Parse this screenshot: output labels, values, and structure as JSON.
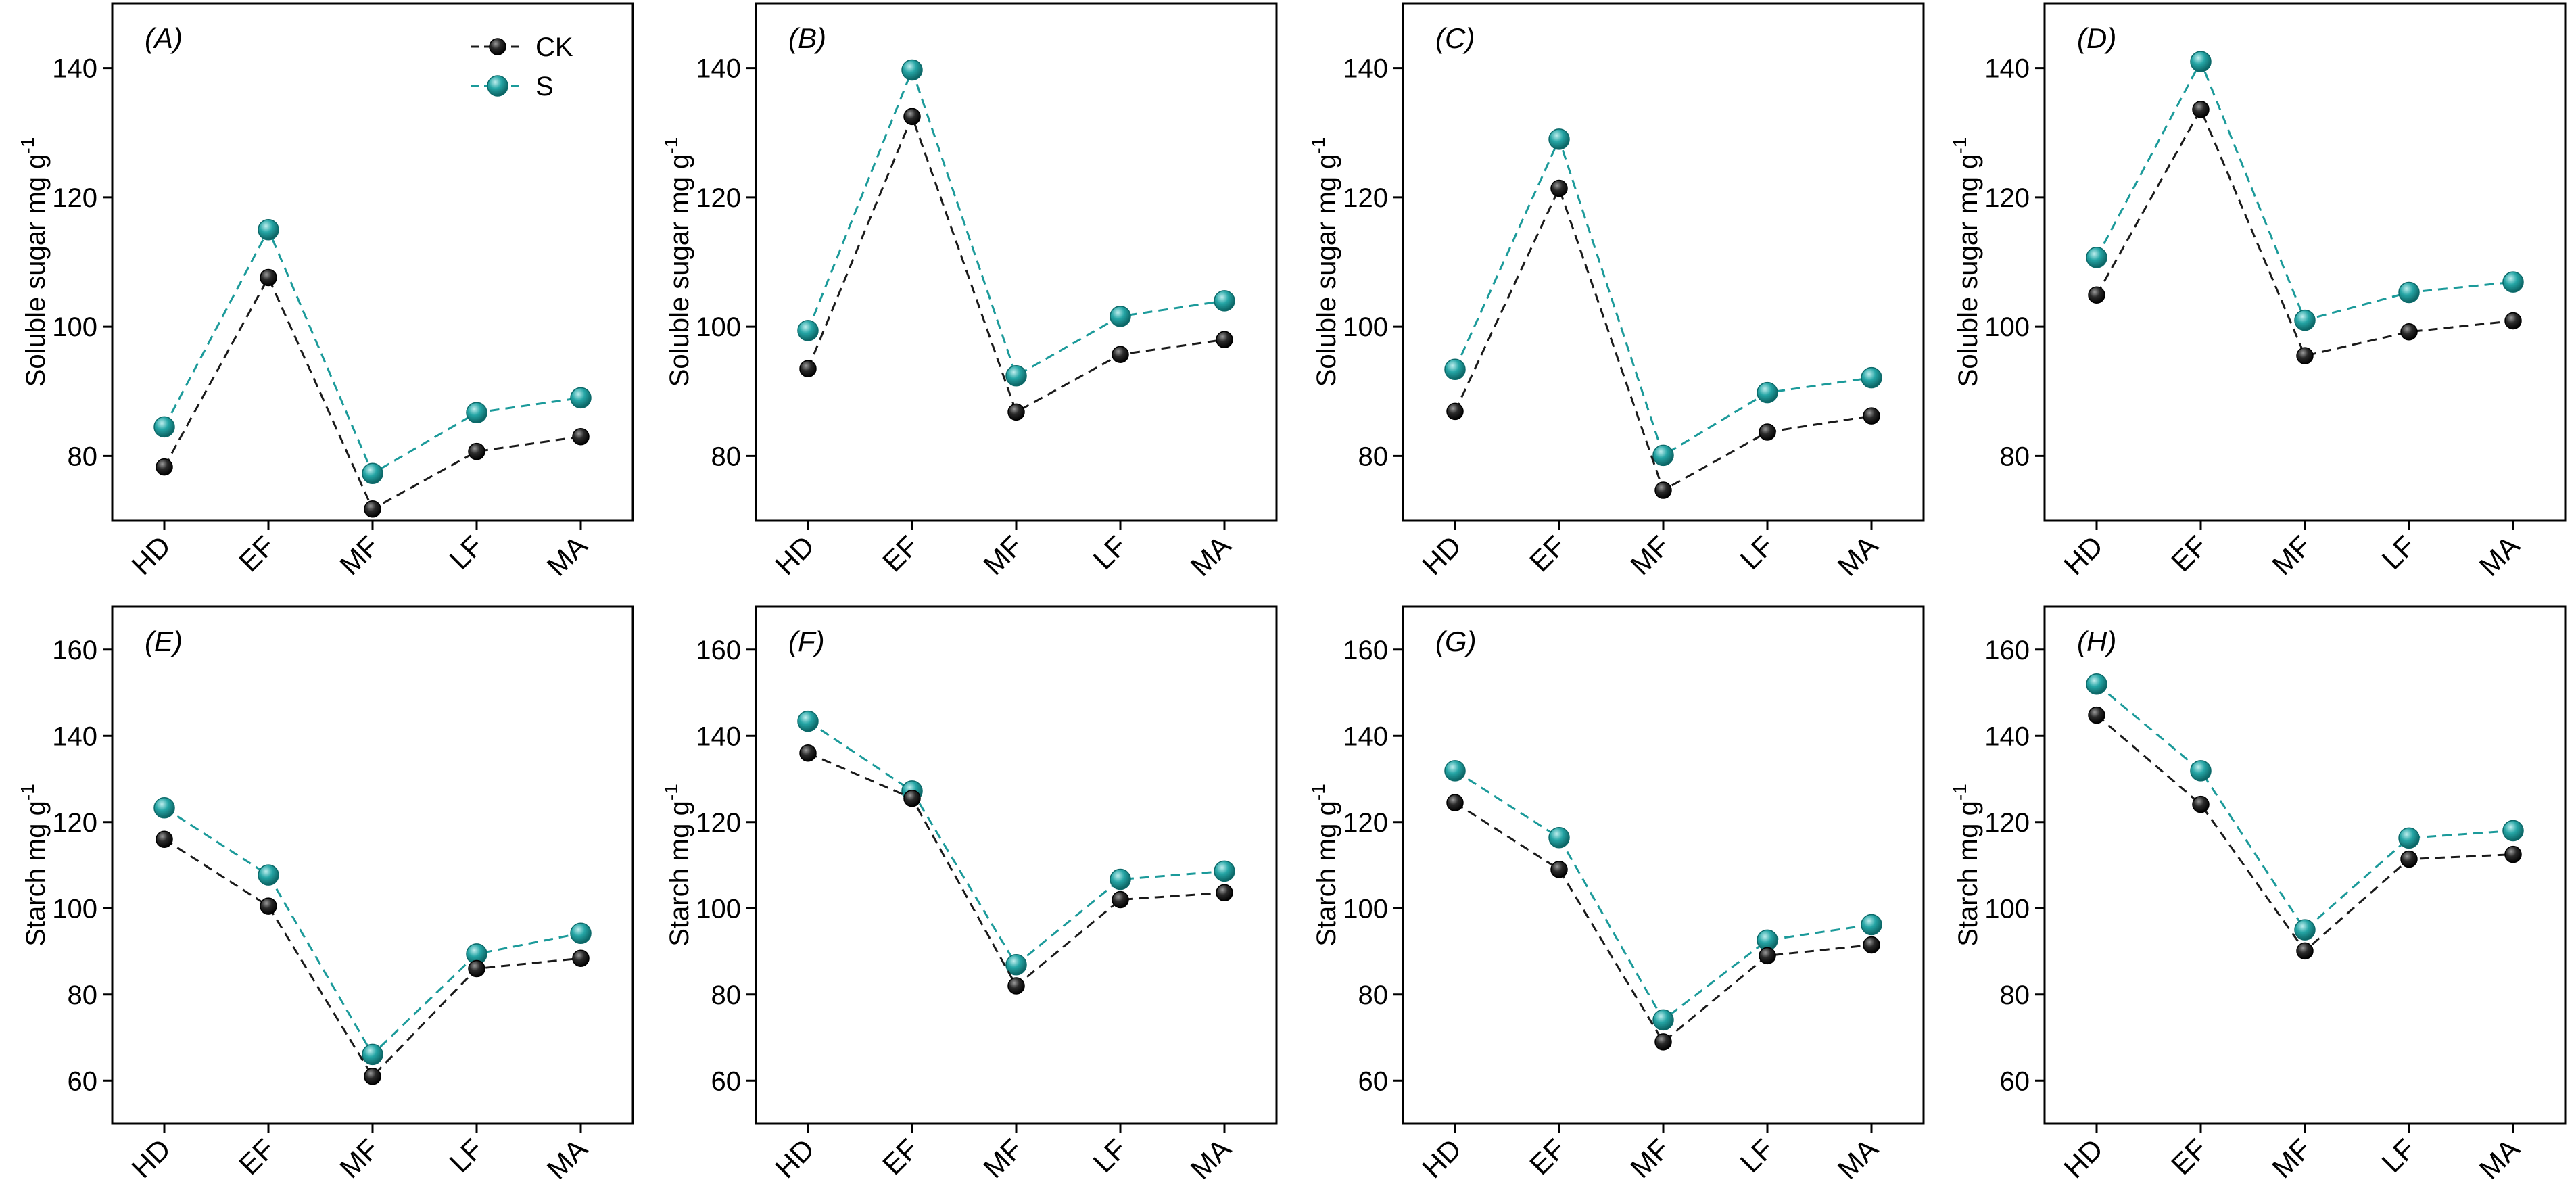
{
  "colors": {
    "CK": "#1a1a1a",
    "S": "#1b9a9a",
    "axis": "#000000"
  },
  "legend": {
    "entries": [
      "CK",
      "S"
    ],
    "placement": "top-right",
    "panel": 0
  },
  "chart_data": [
    {
      "type": "line",
      "tag": "(A)",
      "ylabel": "Soluble sugar mg g",
      "ylabel_sup": "-1",
      "categories": [
        "HD",
        "EF",
        "MF",
        "LF",
        "MA"
      ],
      "ylim": [
        70,
        150
      ],
      "yticks": [
        80,
        100,
        120,
        140
      ],
      "series": [
        {
          "name": "CK",
          "values": [
            78.3,
            107.6,
            71.8,
            80.7,
            83.0
          ]
        },
        {
          "name": "S",
          "values": [
            84.5,
            115.0,
            77.3,
            86.7,
            89.0
          ]
        }
      ]
    },
    {
      "type": "line",
      "tag": "(B)",
      "ylabel": "Soluble sugar mg g",
      "ylabel_sup": "-1",
      "categories": [
        "HD",
        "EF",
        "MF",
        "LF",
        "MA"
      ],
      "ylim": [
        70,
        150
      ],
      "yticks": [
        80,
        100,
        120,
        140
      ],
      "series": [
        {
          "name": "CK",
          "values": [
            93.5,
            132.5,
            86.8,
            95.7,
            98.0
          ]
        },
        {
          "name": "S",
          "values": [
            99.4,
            139.7,
            92.4,
            101.6,
            104.0
          ]
        }
      ]
    },
    {
      "type": "line",
      "tag": "(C)",
      "ylabel": "Soluble sugar mg g",
      "ylabel_sup": "-1",
      "categories": [
        "HD",
        "EF",
        "MF",
        "LF",
        "MA"
      ],
      "ylim": [
        70,
        150
      ],
      "yticks": [
        80,
        100,
        120,
        140
      ],
      "series": [
        {
          "name": "CK",
          "values": [
            86.9,
            121.4,
            74.7,
            83.7,
            86.2
          ]
        },
        {
          "name": "S",
          "values": [
            93.4,
            129.0,
            80.1,
            89.8,
            92.1
          ]
        }
      ]
    },
    {
      "type": "line",
      "tag": "(D)",
      "ylabel": "Soluble sugar mg g",
      "ylabel_sup": "-1",
      "categories": [
        "HD",
        "EF",
        "MF",
        "LF",
        "MA"
      ],
      "ylim": [
        70,
        150
      ],
      "yticks": [
        80,
        100,
        120,
        140
      ],
      "series": [
        {
          "name": "CK",
          "values": [
            104.9,
            133.6,
            95.5,
            99.2,
            100.9
          ]
        },
        {
          "name": "S",
          "values": [
            110.7,
            141.0,
            101.0,
            105.3,
            106.9
          ]
        }
      ]
    },
    {
      "type": "line",
      "tag": "(E)",
      "ylabel": "Starch mg g",
      "ylabel_sup": "-1",
      "categories": [
        "HD",
        "EF",
        "MF",
        "LF",
        "MA"
      ],
      "ylim": [
        50,
        170
      ],
      "yticks": [
        60,
        80,
        100,
        120,
        140,
        160
      ],
      "series": [
        {
          "name": "CK",
          "values": [
            116.0,
            100.5,
            61.0,
            86.0,
            88.4
          ]
        },
        {
          "name": "S",
          "values": [
            123.3,
            107.7,
            66.1,
            89.4,
            94.2
          ]
        }
      ]
    },
    {
      "type": "line",
      "tag": "(F)",
      "ylabel": "Starch mg g",
      "ylabel_sup": "-1",
      "categories": [
        "HD",
        "EF",
        "MF",
        "LF",
        "MA"
      ],
      "ylim": [
        50,
        170
      ],
      "yticks": [
        60,
        80,
        100,
        120,
        140,
        160
      ],
      "series": [
        {
          "name": "CK",
          "values": [
            136.0,
            125.5,
            82.0,
            102.0,
            103.6
          ]
        },
        {
          "name": "S",
          "values": [
            143.4,
            127.2,
            86.9,
            106.7,
            108.6
          ]
        }
      ]
    },
    {
      "type": "line",
      "tag": "(G)",
      "ylabel": "Starch mg g",
      "ylabel_sup": "-1",
      "categories": [
        "HD",
        "EF",
        "MF",
        "LF",
        "MA"
      ],
      "ylim": [
        50,
        170
      ],
      "yticks": [
        60,
        80,
        100,
        120,
        140,
        160
      ],
      "series": [
        {
          "name": "CK",
          "values": [
            124.5,
            109.0,
            69.0,
            89.0,
            91.5
          ]
        },
        {
          "name": "S",
          "values": [
            131.9,
            116.4,
            74.1,
            92.6,
            96.2
          ]
        }
      ]
    },
    {
      "type": "line",
      "tag": "(H)",
      "ylabel": "Starch mg g",
      "ylabel_sup": "-1",
      "categories": [
        "HD",
        "EF",
        "MF",
        "LF",
        "MA"
      ],
      "ylim": [
        50,
        170
      ],
      "yticks": [
        60,
        80,
        100,
        120,
        140,
        160
      ],
      "series": [
        {
          "name": "CK",
          "values": [
            144.8,
            124.1,
            90.1,
            111.4,
            112.5
          ]
        },
        {
          "name": "S",
          "values": [
            152.0,
            131.9,
            95.0,
            116.3,
            118.0
          ]
        }
      ]
    }
  ]
}
